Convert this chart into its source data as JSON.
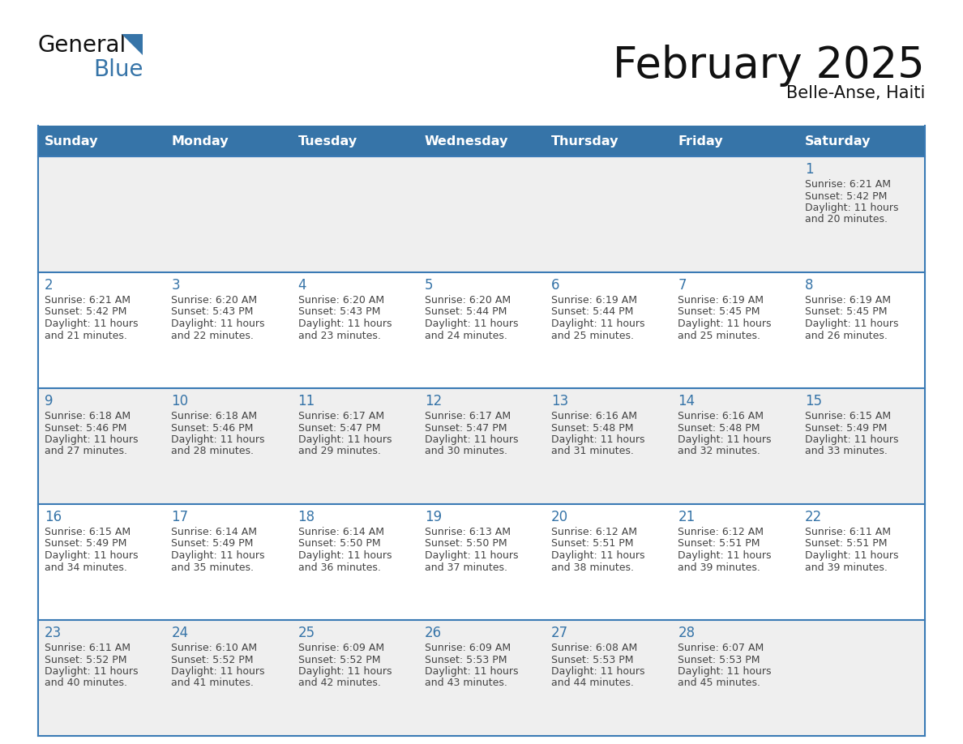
{
  "title": "February 2025",
  "subtitle": "Belle-Anse, Haiti",
  "days_of_week": [
    "Sunday",
    "Monday",
    "Tuesday",
    "Wednesday",
    "Thursday",
    "Friday",
    "Saturday"
  ],
  "header_bg": "#3674a8",
  "header_text": "#ffffff",
  "cell_bg_light": "#efefef",
  "cell_bg_white": "#ffffff",
  "cell_border_color": "#3a7ab5",
  "day_number_color": "#3674a8",
  "info_text_color": "#444444",
  "background": "#ffffff",
  "logo_general_color": "#111111",
  "logo_blue_color": "#3674a8",
  "logo_triangle_color": "#3674a8",
  "title_color": "#111111",
  "subtitle_color": "#111111",
  "calendar_data": [
    [
      null,
      null,
      null,
      null,
      null,
      null,
      {
        "day": 1,
        "sunrise": "6:21 AM",
        "sunset": "5:42 PM",
        "daylight_line1": "Daylight: 11 hours",
        "daylight_line2": "and 20 minutes."
      }
    ],
    [
      {
        "day": 2,
        "sunrise": "6:21 AM",
        "sunset": "5:42 PM",
        "daylight_line1": "Daylight: 11 hours",
        "daylight_line2": "and 21 minutes."
      },
      {
        "day": 3,
        "sunrise": "6:20 AM",
        "sunset": "5:43 PM",
        "daylight_line1": "Daylight: 11 hours",
        "daylight_line2": "and 22 minutes."
      },
      {
        "day": 4,
        "sunrise": "6:20 AM",
        "sunset": "5:43 PM",
        "daylight_line1": "Daylight: 11 hours",
        "daylight_line2": "and 23 minutes."
      },
      {
        "day": 5,
        "sunrise": "6:20 AM",
        "sunset": "5:44 PM",
        "daylight_line1": "Daylight: 11 hours",
        "daylight_line2": "and 24 minutes."
      },
      {
        "day": 6,
        "sunrise": "6:19 AM",
        "sunset": "5:44 PM",
        "daylight_line1": "Daylight: 11 hours",
        "daylight_line2": "and 25 minutes."
      },
      {
        "day": 7,
        "sunrise": "6:19 AM",
        "sunset": "5:45 PM",
        "daylight_line1": "Daylight: 11 hours",
        "daylight_line2": "and 25 minutes."
      },
      {
        "day": 8,
        "sunrise": "6:19 AM",
        "sunset": "5:45 PM",
        "daylight_line1": "Daylight: 11 hours",
        "daylight_line2": "and 26 minutes."
      }
    ],
    [
      {
        "day": 9,
        "sunrise": "6:18 AM",
        "sunset": "5:46 PM",
        "daylight_line1": "Daylight: 11 hours",
        "daylight_line2": "and 27 minutes."
      },
      {
        "day": 10,
        "sunrise": "6:18 AM",
        "sunset": "5:46 PM",
        "daylight_line1": "Daylight: 11 hours",
        "daylight_line2": "and 28 minutes."
      },
      {
        "day": 11,
        "sunrise": "6:17 AM",
        "sunset": "5:47 PM",
        "daylight_line1": "Daylight: 11 hours",
        "daylight_line2": "and 29 minutes."
      },
      {
        "day": 12,
        "sunrise": "6:17 AM",
        "sunset": "5:47 PM",
        "daylight_line1": "Daylight: 11 hours",
        "daylight_line2": "and 30 minutes."
      },
      {
        "day": 13,
        "sunrise": "6:16 AM",
        "sunset": "5:48 PM",
        "daylight_line1": "Daylight: 11 hours",
        "daylight_line2": "and 31 minutes."
      },
      {
        "day": 14,
        "sunrise": "6:16 AM",
        "sunset": "5:48 PM",
        "daylight_line1": "Daylight: 11 hours",
        "daylight_line2": "and 32 minutes."
      },
      {
        "day": 15,
        "sunrise": "6:15 AM",
        "sunset": "5:49 PM",
        "daylight_line1": "Daylight: 11 hours",
        "daylight_line2": "and 33 minutes."
      }
    ],
    [
      {
        "day": 16,
        "sunrise": "6:15 AM",
        "sunset": "5:49 PM",
        "daylight_line1": "Daylight: 11 hours",
        "daylight_line2": "and 34 minutes."
      },
      {
        "day": 17,
        "sunrise": "6:14 AM",
        "sunset": "5:49 PM",
        "daylight_line1": "Daylight: 11 hours",
        "daylight_line2": "and 35 minutes."
      },
      {
        "day": 18,
        "sunrise": "6:14 AM",
        "sunset": "5:50 PM",
        "daylight_line1": "Daylight: 11 hours",
        "daylight_line2": "and 36 minutes."
      },
      {
        "day": 19,
        "sunrise": "6:13 AM",
        "sunset": "5:50 PM",
        "daylight_line1": "Daylight: 11 hours",
        "daylight_line2": "and 37 minutes."
      },
      {
        "day": 20,
        "sunrise": "6:12 AM",
        "sunset": "5:51 PM",
        "daylight_line1": "Daylight: 11 hours",
        "daylight_line2": "and 38 minutes."
      },
      {
        "day": 21,
        "sunrise": "6:12 AM",
        "sunset": "5:51 PM",
        "daylight_line1": "Daylight: 11 hours",
        "daylight_line2": "and 39 minutes."
      },
      {
        "day": 22,
        "sunrise": "6:11 AM",
        "sunset": "5:51 PM",
        "daylight_line1": "Daylight: 11 hours",
        "daylight_line2": "and 39 minutes."
      }
    ],
    [
      {
        "day": 23,
        "sunrise": "6:11 AM",
        "sunset": "5:52 PM",
        "daylight_line1": "Daylight: 11 hours",
        "daylight_line2": "and 40 minutes."
      },
      {
        "day": 24,
        "sunrise": "6:10 AM",
        "sunset": "5:52 PM",
        "daylight_line1": "Daylight: 11 hours",
        "daylight_line2": "and 41 minutes."
      },
      {
        "day": 25,
        "sunrise": "6:09 AM",
        "sunset": "5:52 PM",
        "daylight_line1": "Daylight: 11 hours",
        "daylight_line2": "and 42 minutes."
      },
      {
        "day": 26,
        "sunrise": "6:09 AM",
        "sunset": "5:53 PM",
        "daylight_line1": "Daylight: 11 hours",
        "daylight_line2": "and 43 minutes."
      },
      {
        "day": 27,
        "sunrise": "6:08 AM",
        "sunset": "5:53 PM",
        "daylight_line1": "Daylight: 11 hours",
        "daylight_line2": "and 44 minutes."
      },
      {
        "day": 28,
        "sunrise": "6:07 AM",
        "sunset": "5:53 PM",
        "daylight_line1": "Daylight: 11 hours",
        "daylight_line2": "and 45 minutes."
      },
      null
    ]
  ]
}
